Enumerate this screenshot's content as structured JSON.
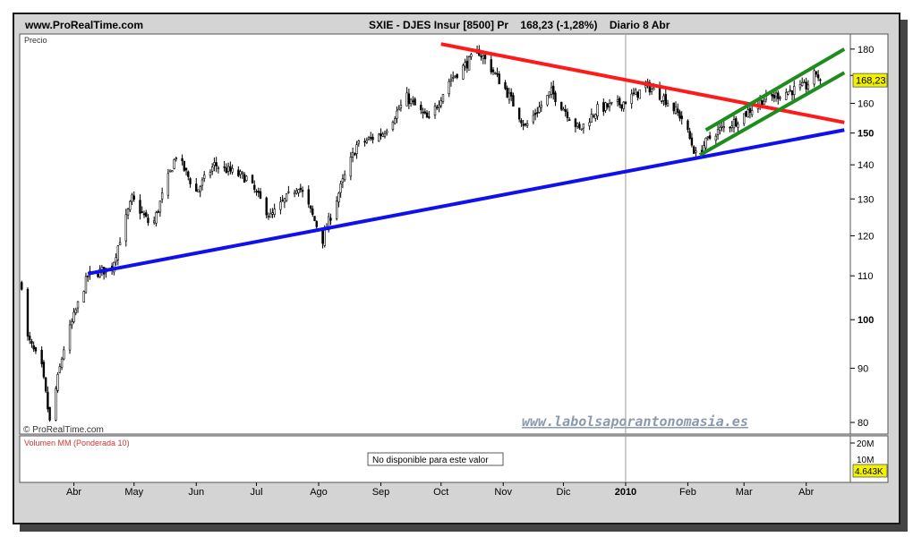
{
  "header": {
    "site": "www.ProRealTime.com",
    "ticker": "SXIE - DJES Insur [8500] Pr",
    "last": "168,23 (-1,28%)",
    "period": "Diario  8 Abr"
  },
  "price_panel": {
    "label": "Precio",
    "copyright": "© ProRealTime.com",
    "watermark": "www.labolsaporantonomasia.es",
    "last_price_tag": "168,23"
  },
  "volume_panel": {
    "label": "Volumen MM (Ponderada 10)",
    "notice": "No disponible para este valor",
    "axis_ticks": [
      "20M",
      "10M"
    ],
    "last_value_tag": "4.643K"
  },
  "colors": {
    "background": "#ffffff",
    "frame": "#d4d4d4",
    "candle": "#000000",
    "resistance_line": "#ff1a1a",
    "support_line": "#1010ee",
    "channel_lines": "#1e8c1e",
    "tag_fill": "#f2f200",
    "volume_label": "#cc3333",
    "watermark": "#8a9aaa"
  },
  "chart_data": {
    "type": "candlestick",
    "scale": "log",
    "y_ticks": [
      80,
      90,
      100,
      110,
      120,
      130,
      140,
      150,
      160,
      170,
      180
    ],
    "y_tick_labels": [
      "80",
      "90",
      "100",
      "110",
      "120",
      "130",
      "140",
      "150",
      "160",
      "",
      "180"
    ],
    "ylim": [
      78,
      186
    ],
    "x_ticks": [
      "Abr",
      "May",
      "Jun",
      "Jul",
      "Ago",
      "Sep",
      "Oct",
      "Nov",
      "Dic",
      "2010",
      "Feb",
      "Mar",
      "Abr"
    ],
    "last_close": 168.23,
    "anchors": [
      {
        "date": "2009-03-06",
        "close": 108
      },
      {
        "date": "2009-03-09",
        "close": 96
      },
      {
        "date": "2009-03-16",
        "close": 90
      },
      {
        "date": "2009-03-20",
        "close": 80
      },
      {
        "date": "2009-03-27",
        "close": 94
      },
      {
        "date": "2009-04-08",
        "close": 110
      },
      {
        "date": "2009-04-20",
        "close": 112
      },
      {
        "date": "2009-04-30",
        "close": 130
      },
      {
        "date": "2009-05-10",
        "close": 122
      },
      {
        "date": "2009-05-22",
        "close": 143
      },
      {
        "date": "2009-06-01",
        "close": 132
      },
      {
        "date": "2009-06-10",
        "close": 140
      },
      {
        "date": "2009-06-26",
        "close": 136
      },
      {
        "date": "2009-07-08",
        "close": 125
      },
      {
        "date": "2009-07-22",
        "close": 134
      },
      {
        "date": "2009-08-03",
        "close": 119
      },
      {
        "date": "2009-08-20",
        "close": 146
      },
      {
        "date": "2009-09-02",
        "close": 150
      },
      {
        "date": "2009-09-14",
        "close": 162
      },
      {
        "date": "2009-09-25",
        "close": 154
      },
      {
        "date": "2009-10-05",
        "close": 168
      },
      {
        "date": "2009-10-20",
        "close": 179
      },
      {
        "date": "2009-11-02",
        "close": 165
      },
      {
        "date": "2009-11-12",
        "close": 152
      },
      {
        "date": "2009-11-25",
        "close": 164
      },
      {
        "date": "2009-12-09",
        "close": 151
      },
      {
        "date": "2009-12-18",
        "close": 158
      },
      {
        "date": "2009-12-30",
        "close": 160
      },
      {
        "date": "2010-01-12",
        "close": 166
      },
      {
        "date": "2010-01-20",
        "close": 162
      },
      {
        "date": "2010-01-29",
        "close": 155
      },
      {
        "date": "2010-02-05",
        "close": 143
      },
      {
        "date": "2010-02-14",
        "close": 150
      },
      {
        "date": "2010-02-25",
        "close": 154
      },
      {
        "date": "2010-03-10",
        "close": 161
      },
      {
        "date": "2010-03-22",
        "close": 164
      },
      {
        "date": "2010-04-01",
        "close": 166
      },
      {
        "date": "2010-04-06",
        "close": 171
      },
      {
        "date": "2010-04-08",
        "close": 168.23
      }
    ],
    "trendlines": [
      {
        "name": "resistance",
        "color": "#ff1a1a",
        "from": {
          "date": "2009-10-01",
          "price": 182
        },
        "to": {
          "date": "2010-04-20",
          "price": 153.5
        }
      },
      {
        "name": "support",
        "color": "#1010ee",
        "from": {
          "date": "2009-04-08",
          "price": 110.5
        },
        "to": {
          "date": "2010-04-20",
          "price": 151
        }
      },
      {
        "name": "channel-upper",
        "color": "#1e8c1e",
        "from": {
          "date": "2010-02-10",
          "price": 151
        },
        "to": {
          "date": "2010-04-20",
          "price": 180
        }
      },
      {
        "name": "channel-lower",
        "color": "#1e8c1e",
        "from": {
          "date": "2010-02-07",
          "price": 143
        },
        "to": {
          "date": "2010-04-20",
          "price": 171
        }
      }
    ]
  }
}
